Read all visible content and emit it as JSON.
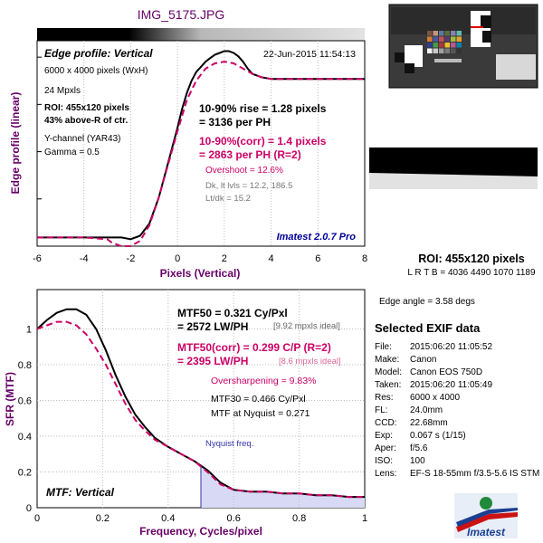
{
  "filename": "IMG_5175.JPG",
  "colors": {
    "title": "#660066",
    "black": "#000000",
    "magenta": "#cc0066",
    "gray": "#666666",
    "blue": "#000099",
    "nyquist_fill": "#d8daf5"
  },
  "edge_panel": {
    "title": "Edge profile: Vertical",
    "timestamp": "22-Jun-2015 11:54:13",
    "info": [
      "6000 x 4000 pixels (WxH)",
      "24 Mpxls"
    ],
    "roi_lines": [
      "ROI: 455x120 pixels",
      "43% above-R of ctr."
    ],
    "channel": "Y-channel  (YAR43)",
    "gamma": "Gamma = 0.5",
    "rise_lines": [
      "10-90% rise = 1.28 pixels",
      "= 3136 per PH"
    ],
    "corr_lines": [
      "10-90%(corr) = 1.4 pixels",
      "= 2863 per PH  (R=2)"
    ],
    "overshoot": "Overshoot = 12.6%",
    "levels": [
      "Dk, lt lvls = 12.2, 186.5",
      "Lt/dk = 15.2"
    ],
    "brand": "Imatest 2.0.7 Pro"
  },
  "mtf_panel": {
    "mtf50_lines": [
      "MTF50 = 0.321 Cy/Pxl",
      "= 2572 LW/PH"
    ],
    "mtf50_ideal": "[9.92 mpxls ideal]",
    "corr_lines": [
      "MTF50(corr) = 0.299 C/P  (R=2)",
      "= 2395 LW/PH"
    ],
    "corr_ideal": "[8.6 mpxls ideal]",
    "oversharpening": "Oversharpening = 9.83%",
    "mtf30": "MTF30 = 0.466 Cy/Pxl",
    "nyquist_mtf": "MTF at Nyquist = 0.271",
    "nyquist_label": "Nyquist freq.",
    "panel_label": "MTF: Vertical"
  },
  "roi_info": {
    "title": "ROI: 455x120 pixels",
    "lrtb": "L R  T B = 4036 4490  1070 1189",
    "edge_angle": "Edge angle = 3.58 degs"
  },
  "exif": {
    "title": "Selected EXIF data",
    "rows": [
      {
        "key": "File:",
        "value": "2015:06:20 11:05:52"
      },
      {
        "key": "Make:",
        "value": "Canon"
      },
      {
        "key": "Model:",
        "value": "Canon EOS 750D"
      },
      {
        "key": "Taken:",
        "value": "2015:06:20 11:05:49"
      },
      {
        "key": "Res:",
        "value": "6000 x 4000"
      },
      {
        "key": "FL:",
        "value": "24.0mm"
      },
      {
        "key": "CCD:",
        "value": "22.68mm"
      },
      {
        "key": "Exp:",
        "value": "0.067 s  (1/15)"
      },
      {
        "key": "Aper:",
        "value": "f/5.6"
      },
      {
        "key": "ISO:",
        "value": "100"
      },
      {
        "key": "Lens:",
        "value": "EF-S 18-55mm f/3.5-5.6 IS STM"
      }
    ]
  },
  "logo_text": "Imatest",
  "chart_data": [
    {
      "type": "line",
      "title": "Edge profile: Vertical",
      "xlabel": "Pixels (Vertical)",
      "ylabel": "Edge profile (linear)",
      "xlim": [
        -6,
        8
      ],
      "ylim": [
        0,
        1.18
      ],
      "xticks": [
        -6,
        -4,
        -2,
        0,
        2,
        4,
        6,
        8
      ],
      "yticks": [],
      "grid": true,
      "series": [
        {
          "color": "#000000",
          "dash": false,
          "x": [
            -6,
            -4,
            -3,
            -2.4,
            -2.0,
            -1.6,
            -1.2,
            -0.8,
            -0.4,
            0,
            0.2,
            0.4,
            0.6,
            0.8,
            1.0,
            1.2,
            1.4,
            1.6,
            1.8,
            2.0,
            2.2,
            2.4,
            2.6,
            2.8,
            3.0,
            3.2,
            3.6,
            4.0,
            5.0,
            6.0,
            7.0,
            8.0
          ],
          "y": [
            0.05,
            0.05,
            0.05,
            0.05,
            0.04,
            0.06,
            0.13,
            0.28,
            0.48,
            0.68,
            0.79,
            0.88,
            0.95,
            1.0,
            1.03,
            1.06,
            1.08,
            1.1,
            1.11,
            1.12,
            1.12,
            1.11,
            1.09,
            1.06,
            1.02,
            0.99,
            0.97,
            0.96,
            0.96,
            0.96,
            0.96,
            0.96
          ]
        },
        {
          "color": "#cc0066",
          "dash": true,
          "x": [
            -6,
            -4,
            -3,
            -2.8,
            -2.4,
            -2.0,
            -1.6,
            -1.2,
            -0.8,
            -0.4,
            0,
            0.4,
            0.8,
            1.2,
            1.6,
            2.0,
            2.4,
            2.8,
            3.2,
            3.6,
            4.0,
            4.4,
            5.0,
            6.0,
            7.0,
            8.0
          ],
          "y": [
            0.05,
            0.05,
            0.04,
            0.02,
            0.0,
            0.0,
            0.03,
            0.12,
            0.28,
            0.47,
            0.66,
            0.84,
            0.95,
            1.02,
            1.05,
            1.06,
            1.05,
            1.02,
            0.99,
            0.97,
            0.96,
            0.96,
            0.96,
            0.96,
            0.96,
            0.96
          ]
        }
      ]
    },
    {
      "type": "line",
      "title": "MTF: Vertical",
      "xlabel": "Frequency, Cycles/pixel",
      "ylabel": "SFR (MTF)",
      "xlim": [
        0,
        1
      ],
      "ylim": [
        0,
        1.22
      ],
      "xticks": [
        0,
        0.2,
        0.4,
        0.6,
        0.8,
        1
      ],
      "yticks": [
        0,
        0.2,
        0.4,
        0.6,
        0.8,
        1
      ],
      "grid": true,
      "nyquist_x": 0.5,
      "series": [
        {
          "color": "#000000",
          "dash": false,
          "x": [
            0,
            0.03,
            0.06,
            0.09,
            0.12,
            0.15,
            0.18,
            0.21,
            0.24,
            0.27,
            0.3,
            0.33,
            0.36,
            0.4,
            0.44,
            0.48,
            0.52,
            0.56,
            0.6,
            0.65,
            0.7,
            0.75,
            0.8,
            0.85,
            0.9,
            0.95,
            1.0
          ],
          "y": [
            1.0,
            1.05,
            1.09,
            1.11,
            1.11,
            1.08,
            1.0,
            0.88,
            0.74,
            0.62,
            0.52,
            0.45,
            0.39,
            0.34,
            0.3,
            0.26,
            0.21,
            0.14,
            0.1,
            0.09,
            0.09,
            0.08,
            0.08,
            0.07,
            0.07,
            0.06,
            0.06
          ]
        },
        {
          "color": "#cc0066",
          "dash": true,
          "x": [
            0,
            0.03,
            0.06,
            0.09,
            0.12,
            0.15,
            0.18,
            0.21,
            0.24,
            0.27,
            0.3,
            0.33,
            0.36,
            0.4,
            0.44,
            0.48,
            0.52,
            0.56,
            0.6,
            0.65,
            0.7,
            0.75,
            0.8,
            0.85,
            0.9,
            0.95,
            1.0
          ],
          "y": [
            1.0,
            1.02,
            1.04,
            1.04,
            1.02,
            0.97,
            0.89,
            0.8,
            0.69,
            0.58,
            0.49,
            0.43,
            0.38,
            0.34,
            0.3,
            0.26,
            0.2,
            0.13,
            0.1,
            0.09,
            0.09,
            0.08,
            0.08,
            0.07,
            0.07,
            0.06,
            0.06
          ]
        }
      ]
    }
  ]
}
